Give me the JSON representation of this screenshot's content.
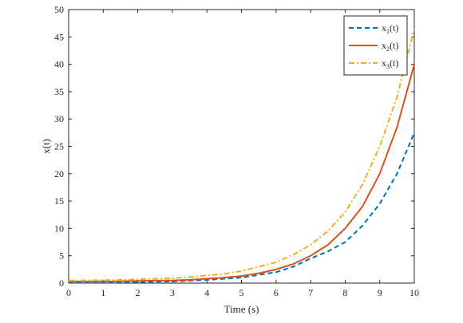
{
  "chart_data": {
    "type": "line",
    "title": "",
    "xlabel": "Time (s)",
    "ylabel": "x(t)",
    "xlim": [
      0,
      10
    ],
    "ylim": [
      0,
      50
    ],
    "xticks": [
      0,
      1,
      2,
      3,
      4,
      5,
      6,
      7,
      8,
      9,
      10
    ],
    "yticks": [
      0,
      5,
      10,
      15,
      20,
      25,
      30,
      35,
      40,
      45,
      50
    ],
    "grid": false,
    "legend_position": "top-right",
    "x": [
      0,
      0.5,
      1,
      1.5,
      2,
      2.5,
      3,
      3.5,
      4,
      4.5,
      5,
      5.5,
      6,
      6.5,
      7,
      7.5,
      8,
      8.5,
      9,
      9.5,
      10
    ],
    "series": [
      {
        "name": "x1(t)",
        "legend_base": "x",
        "legend_sub": "1",
        "legend_suffix": "(t)",
        "color": "#0072BD",
        "style": "dashed",
        "values": [
          0.1,
          0.1,
          0.1,
          0.15,
          0.2,
          0.25,
          0.3,
          0.45,
          0.6,
          0.8,
          1.0,
          1.5,
          2.0,
          3.0,
          4.5,
          5.8,
          7.5,
          10.5,
          14.5,
          20.0,
          27.5
        ]
      },
      {
        "name": "x2(t)",
        "legend_base": "x",
        "legend_sub": "2",
        "legend_suffix": "(t)",
        "color": "#D95319",
        "style": "solid",
        "values": [
          0.3,
          0.3,
          0.3,
          0.35,
          0.4,
          0.45,
          0.5,
          0.6,
          0.8,
          1.0,
          1.3,
          1.8,
          2.5,
          3.5,
          5.0,
          7.0,
          10.0,
          14.0,
          20.0,
          28.5,
          40.0
        ]
      },
      {
        "name": "x3(t)",
        "legend_base": "x",
        "legend_sub": "3",
        "legend_suffix": "(t)",
        "color": "#EDB120",
        "style": "dashdot",
        "values": [
          0.5,
          0.5,
          0.55,
          0.6,
          0.7,
          0.8,
          0.9,
          1.1,
          1.4,
          1.7,
          2.2,
          3.0,
          3.8,
          5.2,
          7.0,
          9.5,
          13.0,
          18.0,
          25.0,
          34.0,
          46.5
        ]
      }
    ]
  }
}
